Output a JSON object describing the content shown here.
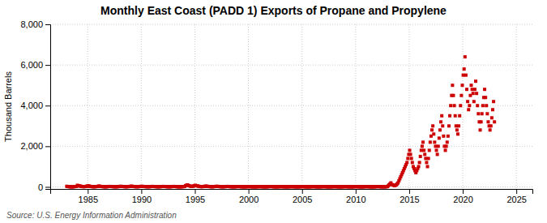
{
  "chart_data": {
    "type": "scatter",
    "title": "Monthly East Coast (PADD 1) Exports of Propane and Propylene",
    "y_label": "Thousand Barrels",
    "source": "Source: U.S. Energy Information Administration",
    "color": "#CC0000",
    "marker": "square",
    "grid": true,
    "xlim": [
      1981.5,
      2026.5
    ],
    "ylim": [
      -100,
      8000
    ],
    "xticks": [
      1985,
      1990,
      1995,
      2000,
      2005,
      2010,
      2015,
      2020,
      2025
    ],
    "yticks": [
      0,
      {
        "value": 2000,
        "label": "2,000"
      },
      {
        "value": 4000,
        "label": "4,000"
      },
      {
        "value": 6000,
        "label": "6,000"
      },
      {
        "value": 8000,
        "label": "8,000"
      }
    ],
    "x": [
      1983.041667,
      1983.125,
      1983.208333,
      1983.291667,
      1983.375,
      1983.458333,
      1983.541667,
      1983.625,
      1983.708333,
      1983.791667,
      1983.875,
      1983.958333,
      1984.041667,
      1984.125,
      1984.208333,
      1984.291667,
      1984.375,
      1984.458333,
      1984.541667,
      1984.625,
      1984.708333,
      1984.791667,
      1984.875,
      1984.958333,
      1985.041667,
      1985.125,
      1985.208333,
      1985.291667,
      1985.375,
      1985.458333,
      1985.541667,
      1985.625,
      1985.708333,
      1985.791667,
      1985.875,
      1985.958333,
      1986.041667,
      1986.125,
      1986.208333,
      1986.291667,
      1986.375,
      1986.458333,
      1986.541667,
      1986.625,
      1986.708333,
      1986.791667,
      1986.875,
      1986.958333,
      1987.041667,
      1987.125,
      1987.208333,
      1987.291667,
      1987.375,
      1987.458333,
      1987.541667,
      1987.625,
      1987.708333,
      1987.791667,
      1987.875,
      1987.958333,
      1988.041667,
      1988.125,
      1988.208333,
      1988.291667,
      1988.375,
      1988.458333,
      1988.541667,
      1988.625,
      1988.708333,
      1988.791667,
      1988.875,
      1988.958333,
      1989.041667,
      1989.125,
      1989.208333,
      1989.291667,
      1989.375,
      1989.458333,
      1989.541667,
      1989.625,
      1989.708333,
      1989.791667,
      1989.875,
      1989.958333,
      1990.041667,
      1990.125,
      1990.208333,
      1990.291667,
      1990.375,
      1990.458333,
      1990.541667,
      1990.625,
      1990.708333,
      1990.791667,
      1990.875,
      1990.958333,
      1991.041667,
      1991.125,
      1991.208333,
      1991.291667,
      1991.375,
      1991.458333,
      1991.541667,
      1991.625,
      1991.708333,
      1991.791667,
      1991.875,
      1991.958333,
      1992.041667,
      1992.125,
      1992.208333,
      1992.291667,
      1992.375,
      1992.458333,
      1992.541667,
      1992.625,
      1992.708333,
      1992.791667,
      1992.875,
      1992.958333,
      1993.041667,
      1993.125,
      1993.208333,
      1993.291667,
      1993.375,
      1993.458333,
      1993.541667,
      1993.625,
      1993.708333,
      1993.791667,
      1993.875,
      1993.958333,
      1994.041667,
      1994.125,
      1994.208333,
      1994.291667,
      1994.375,
      1994.458333,
      1994.541667,
      1994.625,
      1994.708333,
      1994.791667,
      1994.875,
      1994.958333,
      1995.041667,
      1995.125,
      1995.208333,
      1995.291667,
      1995.375,
      1995.458333,
      1995.541667,
      1995.625,
      1995.708333,
      1995.791667,
      1995.875,
      1995.958333,
      1996.041667,
      1996.125,
      1996.208333,
      1996.291667,
      1996.375,
      1996.458333,
      1996.541667,
      1996.625,
      1996.708333,
      1996.791667,
      1996.875,
      1996.958333,
      1997.041667,
      1997.125,
      1997.208333,
      1997.291667,
      1997.375,
      1997.458333,
      1997.541667,
      1997.625,
      1997.708333,
      1997.791667,
      1997.875,
      1997.958333,
      1998.041667,
      1998.125,
      1998.208333,
      1998.291667,
      1998.375,
      1998.458333,
      1998.541667,
      1998.625,
      1998.708333,
      1998.791667,
      1998.875,
      1998.958333,
      1999.041667,
      1999.125,
      1999.208333,
      1999.291667,
      1999.375,
      1999.458333,
      1999.541667,
      1999.625,
      1999.708333,
      1999.791667,
      1999.875,
      1999.958333,
      2000.041667,
      2000.125,
      2000.208333,
      2000.291667,
      2000.375,
      2000.458333,
      2000.541667,
      2000.625,
      2000.708333,
      2000.791667,
      2000.875,
      2000.958333,
      2001.041667,
      2001.125,
      2001.208333,
      2001.291667,
      2001.375,
      2001.458333,
      2001.541667,
      2001.625,
      2001.708333,
      2001.791667,
      2001.875,
      2001.958333,
      2002.041667,
      2002.125,
      2002.208333,
      2002.291667,
      2002.375,
      2002.458333,
      2002.541667,
      2002.625,
      2002.708333,
      2002.791667,
      2002.875,
      2002.958333,
      2003.041667,
      2003.125,
      2003.208333,
      2003.291667,
      2003.375,
      2003.458333,
      2003.541667,
      2003.625,
      2003.708333,
      2003.791667,
      2003.875,
      2003.958333,
      2004.041667,
      2004.125,
      2004.208333,
      2004.291667,
      2004.375,
      2004.458333,
      2004.541667,
      2004.625,
      2004.708333,
      2004.791667,
      2004.875,
      2004.958333,
      2005.041667,
      2005.125,
      2005.208333,
      2005.291667,
      2005.375,
      2005.458333,
      2005.541667,
      2005.625,
      2005.708333,
      2005.791667,
      2005.875,
      2005.958333,
      2006.041667,
      2006.125,
      2006.208333,
      2006.291667,
      2006.375,
      2006.458333,
      2006.541667,
      2006.625,
      2006.708333,
      2006.791667,
      2006.875,
      2006.958333,
      2007.041667,
      2007.125,
      2007.208333,
      2007.291667,
      2007.375,
      2007.458333,
      2007.541667,
      2007.625,
      2007.708333,
      2007.791667,
      2007.875,
      2007.958333,
      2008.041667,
      2008.125,
      2008.208333,
      2008.291667,
      2008.375,
      2008.458333,
      2008.541667,
      2008.625,
      2008.708333,
      2008.791667,
      2008.875,
      2008.958333,
      2009.041667,
      2009.125,
      2009.208333,
      2009.291667,
      2009.375,
      2009.458333,
      2009.541667,
      2009.625,
      2009.708333,
      2009.791667,
      2009.875,
      2009.958333,
      2010.041667,
      2010.125,
      2010.208333,
      2010.291667,
      2010.375,
      2010.458333,
      2010.541667,
      2010.625,
      2010.708333,
      2010.791667,
      2010.875,
      2010.958333,
      2011.041667,
      2011.125,
      2011.208333,
      2011.291667,
      2011.375,
      2011.458333,
      2011.541667,
      2011.625,
      2011.708333,
      2011.791667,
      2011.875,
      2011.958333,
      2012.041667,
      2012.125,
      2012.208333,
      2012.291667,
      2012.375,
      2012.458333,
      2012.541667,
      2012.625,
      2012.708333,
      2012.791667,
      2012.875,
      2012.958333,
      2013.041667,
      2013.125,
      2013.208333,
      2013.291667,
      2013.375,
      2013.458333,
      2013.541667,
      2013.625,
      2013.708333,
      2013.791667,
      2013.875,
      2013.958333,
      2014.041667,
      2014.125,
      2014.208333,
      2014.291667,
      2014.375,
      2014.458333,
      2014.541667,
      2014.625,
      2014.708333,
      2014.791667,
      2014.875,
      2014.958333,
      2015.041667,
      2015.125,
      2015.208333,
      2015.291667,
      2015.375,
      2015.458333,
      2015.541667,
      2015.625,
      2015.708333,
      2015.791667,
      2015.875,
      2015.958333,
      2016.041667,
      2016.125,
      2016.208333,
      2016.291667,
      2016.375,
      2016.458333,
      2016.541667,
      2016.625,
      2016.708333,
      2016.791667,
      2016.875,
      2016.958333,
      2017.041667,
      2017.125,
      2017.208333,
      2017.291667,
      2017.375,
      2017.458333,
      2017.541667,
      2017.625,
      2017.708333,
      2017.791667,
      2017.875,
      2017.958333,
      2018.041667,
      2018.125,
      2018.208333,
      2018.291667,
      2018.375,
      2018.458333,
      2018.541667,
      2018.625,
      2018.708333,
      2018.791667,
      2018.875,
      2018.958333,
      2019.041667,
      2019.125,
      2019.208333,
      2019.291667,
      2019.375,
      2019.458333,
      2019.541667,
      2019.625,
      2019.708333,
      2019.791667,
      2019.875,
      2019.958333,
      2020.041667,
      2020.125,
      2020.208333,
      2020.291667,
      2020.375,
      2020.458333,
      2020.541667,
      2020.625,
      2020.708333,
      2020.791667,
      2020.875,
      2020.958333,
      2021.041667,
      2021.125,
      2021.208333,
      2021.291667,
      2021.375,
      2021.458333,
      2021.541667,
      2021.625,
      2021.708333,
      2021.791667,
      2021.875,
      2021.958333,
      2022.041667,
      2022.125,
      2022.208333,
      2022.291667,
      2022.375,
      2022.458333,
      2022.541667,
      2022.625,
      2022.708333,
      2022.791667,
      2022.875,
      2022.958333
    ],
    "values": [
      30,
      20,
      15,
      10,
      8,
      5,
      5,
      8,
      10,
      15,
      20,
      25,
      80,
      60,
      50,
      40,
      30,
      20,
      15,
      10,
      15,
      20,
      30,
      40,
      50,
      40,
      30,
      20,
      15,
      10,
      8,
      10,
      12,
      15,
      20,
      30,
      40,
      30,
      25,
      20,
      15,
      10,
      8,
      6,
      8,
      10,
      15,
      20,
      25,
      20,
      18,
      15,
      12,
      10,
      8,
      8,
      10,
      12,
      15,
      20,
      30,
      25,
      20,
      18,
      15,
      12,
      10,
      10,
      12,
      15,
      20,
      25,
      35,
      30,
      25,
      20,
      15,
      12,
      10,
      10,
      12,
      15,
      20,
      25,
      30,
      25,
      20,
      18,
      15,
      12,
      10,
      8,
      10,
      12,
      15,
      20,
      25,
      20,
      18,
      15,
      12,
      10,
      8,
      8,
      10,
      12,
      15,
      20,
      25,
      20,
      18,
      15,
      12,
      10,
      8,
      8,
      10,
      12,
      15,
      20,
      25,
      20,
      15,
      12,
      10,
      8,
      6,
      6,
      8,
      10,
      12,
      15,
      20,
      60,
      80,
      100,
      80,
      60,
      40,
      30,
      20,
      30,
      40,
      60,
      80,
      60,
      50,
      40,
      30,
      20,
      15,
      10,
      15,
      20,
      25,
      30,
      40,
      30,
      25,
      20,
      15,
      12,
      10,
      8,
      10,
      15,
      20,
      25,
      30,
      25,
      20,
      15,
      12,
      10,
      8,
      8,
      10,
      12,
      15,
      20,
      25,
      20,
      15,
      12,
      10,
      8,
      6,
      6,
      8,
      10,
      12,
      15,
      20,
      15,
      12,
      10,
      8,
      6,
      5,
      5,
      6,
      8,
      10,
      12,
      15,
      12,
      10,
      8,
      6,
      5,
      5,
      5,
      6,
      8,
      10,
      12,
      15,
      12,
      10,
      8,
      6,
      5,
      5,
      5,
      6,
      8,
      10,
      15,
      20,
      15,
      12,
      10,
      8,
      6,
      5,
      5,
      6,
      8,
      10,
      12,
      15,
      12,
      10,
      8,
      6,
      5,
      5,
      5,
      6,
      8,
      10,
      12,
      15,
      12,
      10,
      8,
      6,
      5,
      5,
      5,
      6,
      8,
      10,
      12,
      15,
      12,
      10,
      8,
      6,
      5,
      5,
      5,
      6,
      8,
      10,
      12,
      15,
      12,
      10,
      8,
      6,
      5,
      5,
      5,
      6,
      8,
      10,
      12,
      15,
      12,
      10,
      8,
      6,
      5,
      5,
      5,
      6,
      8,
      10,
      12,
      15,
      12,
      10,
      8,
      6,
      5,
      5,
      5,
      6,
      8,
      10,
      12,
      15,
      12,
      10,
      8,
      6,
      5,
      5,
      5,
      6,
      8,
      10,
      12,
      15,
      12,
      10,
      8,
      6,
      5,
      5,
      5,
      6,
      8,
      10,
      12,
      15,
      12,
      10,
      8,
      6,
      5,
      5,
      5,
      6,
      8,
      10,
      12,
      20,
      15,
      12,
      10,
      8,
      6,
      5,
      5,
      6,
      8,
      10,
      15,
      50,
      100,
      150,
      200,
      120,
      100,
      80,
      60,
      80,
      100,
      150,
      200,
      300,
      400,
      500,
      600,
      700,
      800,
      900,
      1000,
      1100,
      1200,
      1400,
      1600,
      1800,
      1600,
      1400,
      1200,
      1000,
      900,
      800,
      700,
      800,
      900,
      1000,
      1200,
      1500,
      1800,
      2000,
      2200,
      1800,
      1600,
      1400,
      1200,
      1000,
      1400,
      1800,
      2200,
      2500,
      2800,
      3000,
      2600,
      2200,
      2000,
      1800,
      1600,
      2000,
      2400,
      2800,
      3200,
      3500,
      3000,
      2500,
      2000,
      1800,
      2000,
      2200,
      2500,
      3000,
      3500,
      4000,
      4500,
      5000,
      4500,
      4000,
      3500,
      3000,
      2800,
      2600,
      3000,
      3500,
      4000,
      4500,
      5000,
      5500,
      5800,
      6400,
      5500,
      4800,
      4200,
      3800,
      4000,
      4500,
      5000,
      4800,
      4600,
      4200,
      4800,
      5200,
      4600,
      4000,
      3600,
      3200,
      2800,
      3200,
      3600,
      4000,
      4400,
      4800,
      4400,
      4000,
      3600,
      3200,
      3000,
      2800,
      3000,
      3400,
      3800,
      4200,
      3200
    ]
  }
}
